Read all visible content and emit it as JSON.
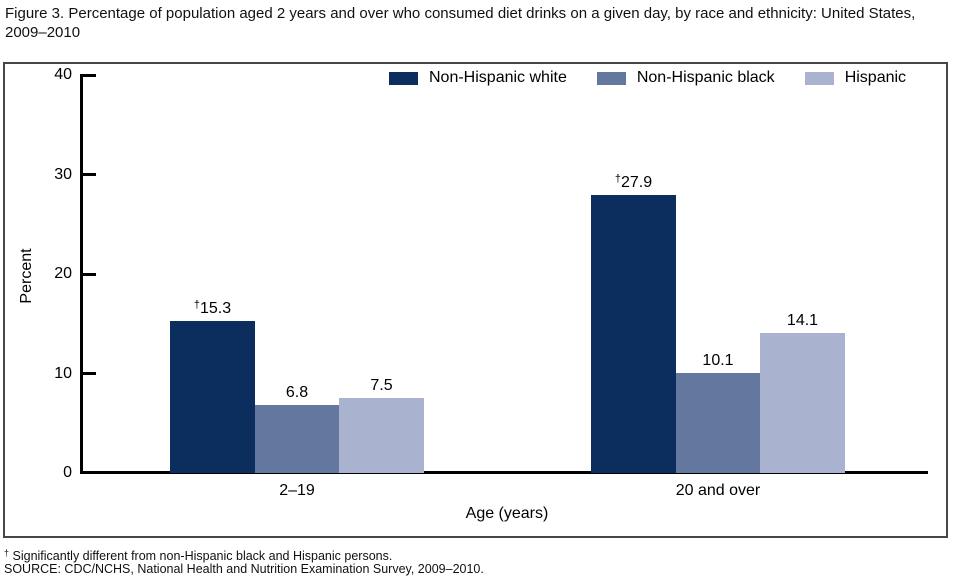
{
  "figure": {
    "title": "Figure 3. Percentage of population aged 2 years and over who consumed diet drinks on a given day, by race and ethnicity: United States, 2009–2010",
    "footnotes": [
      {
        "marker": "†",
        "text": "Significantly different from non-Hispanic black and Hispanic persons."
      },
      {
        "marker": "",
        "text": "SOURCE: CDC/NCHS, National Health and Nutrition Examination Survey, 2009–2010."
      }
    ]
  },
  "chart_data": {
    "type": "bar",
    "categories": [
      "2–19",
      "20 and over"
    ],
    "series": [
      {
        "name": "Non-Hispanic white",
        "color": "#0c2e5f",
        "values": [
          15.3,
          27.9
        ],
        "value_labels": [
          "†15.3",
          "†27.9"
        ]
      },
      {
        "name": "Non-Hispanic black",
        "color": "#64789f",
        "values": [
          6.8,
          10.1
        ],
        "value_labels": [
          "6.8",
          "10.1"
        ]
      },
      {
        "name": "Hispanic",
        "color": "#a9b2cf",
        "values": [
          7.5,
          14.1
        ],
        "value_labels": [
          "7.5",
          "14.1"
        ]
      }
    ],
    "xlabel": "Age (years)",
    "ylabel": "Percent",
    "ylim": [
      0,
      40
    ],
    "yticks": [
      0,
      10,
      20,
      30,
      40
    ],
    "legend_position": "top",
    "grid": false,
    "dagger_marker": "†"
  },
  "colors": {
    "axis": "#000000",
    "frame_border": "#474747",
    "background": "#ffffff"
  }
}
